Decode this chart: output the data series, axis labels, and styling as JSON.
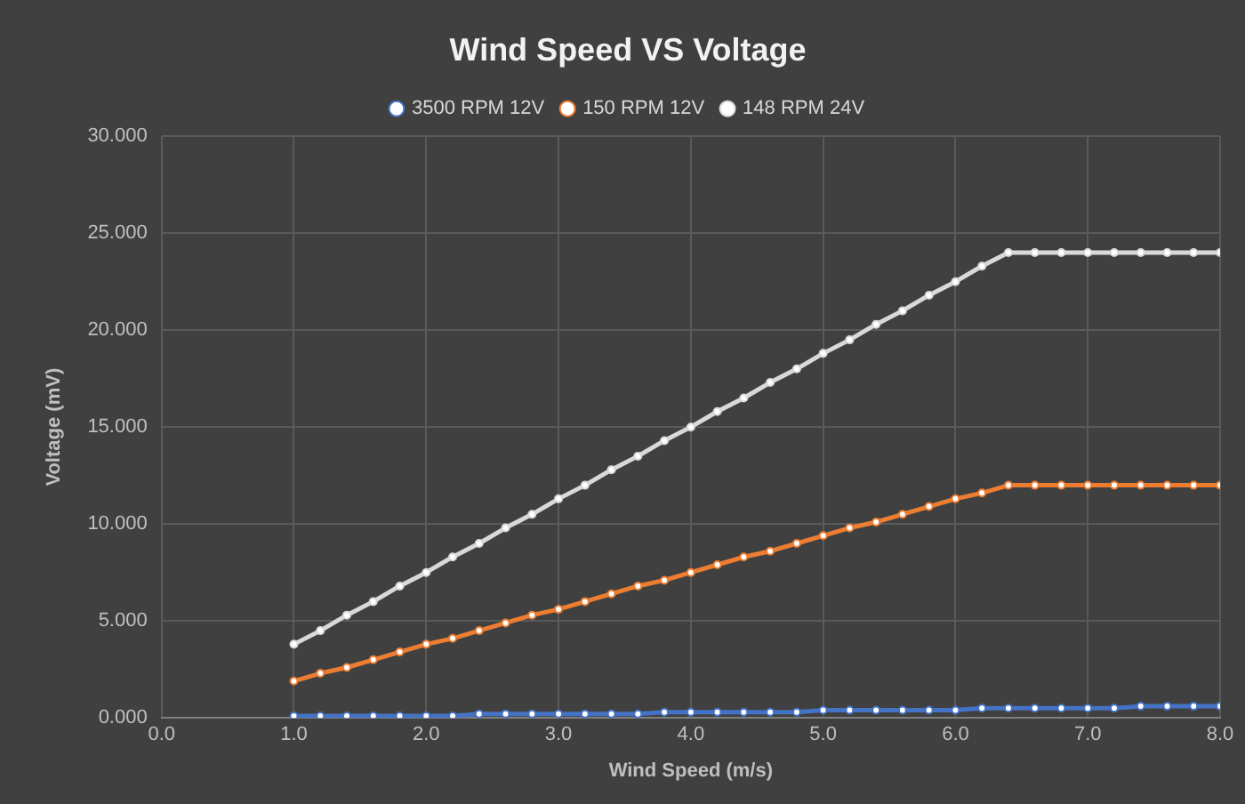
{
  "chart_data": {
    "type": "line",
    "title": "Wind Speed VS Voltage",
    "xlabel": "Wind Speed (m/s)",
    "ylabel": "Voltage (mV)",
    "x": [
      1.0,
      1.2,
      1.4,
      1.6,
      1.8,
      2.0,
      2.2,
      2.4,
      2.6,
      2.8,
      3.0,
      3.2,
      3.4,
      3.6,
      3.8,
      4.0,
      4.2,
      4.4,
      4.6,
      4.8,
      5.0,
      5.2,
      5.4,
      5.6,
      5.8,
      6.0,
      6.2,
      6.4,
      6.6,
      6.8,
      7.0,
      7.2,
      7.4,
      7.6,
      7.8,
      8.0
    ],
    "series": [
      {
        "name": "3500 RPM 12V",
        "color": "#4472c4",
        "values": [
          0.1,
          0.1,
          0.1,
          0.1,
          0.1,
          0.1,
          0.1,
          0.2,
          0.2,
          0.2,
          0.2,
          0.2,
          0.2,
          0.2,
          0.3,
          0.3,
          0.3,
          0.3,
          0.3,
          0.3,
          0.4,
          0.4,
          0.4,
          0.4,
          0.4,
          0.4,
          0.5,
          0.5,
          0.5,
          0.5,
          0.5,
          0.5,
          0.6,
          0.6,
          0.6,
          0.6
        ]
      },
      {
        "name": "150 RPM 12V",
        "color": "#ed7d31",
        "values": [
          1.9,
          2.3,
          2.6,
          3,
          3.4,
          3.8,
          4.1,
          4.5,
          4.9,
          5.3,
          5.6,
          6,
          6.4,
          6.8,
          7.1,
          7.5,
          7.9,
          8.3,
          8.6,
          9,
          9.4,
          9.8,
          10.1,
          10.5,
          10.9,
          11.3,
          11.6,
          12,
          12,
          12,
          12,
          12,
          12,
          12,
          12,
          12
        ]
      },
      {
        "name": "148 RPM 24V",
        "color": "#d9d9d9",
        "values": [
          3.8,
          4.5,
          5.3,
          6,
          6.8,
          7.5,
          8.3,
          9,
          9.8,
          10.5,
          11.3,
          12,
          12.8,
          13.5,
          14.3,
          15,
          15.8,
          16.5,
          17.3,
          18,
          18.8,
          19.5,
          20.3,
          21,
          21.8,
          22.5,
          23.3,
          24,
          24,
          24,
          24,
          24,
          24,
          24,
          24,
          24
        ]
      }
    ],
    "xlim": [
      0,
      8
    ],
    "xticks": [
      {
        "value": 0,
        "label": "0.0"
      },
      {
        "value": 1,
        "label": "1.0"
      },
      {
        "value": 2,
        "label": "2.0"
      },
      {
        "value": 3,
        "label": "3.0"
      },
      {
        "value": 4,
        "label": "4.0"
      },
      {
        "value": 5,
        "label": "5.0"
      },
      {
        "value": 6,
        "label": "6.0"
      },
      {
        "value": 7,
        "label": "7.0"
      },
      {
        "value": 8,
        "label": "8.0"
      }
    ],
    "ylim": [
      0,
      30
    ],
    "yticks": [
      {
        "value": 0,
        "label": "0.000"
      },
      {
        "value": 5,
        "label": "5.000"
      },
      {
        "value": 10,
        "label": "10.000"
      },
      {
        "value": 15,
        "label": "15.000"
      },
      {
        "value": 20,
        "label": "20.000"
      },
      {
        "value": 25,
        "label": "25.000"
      },
      {
        "value": 30,
        "label": "30.000"
      }
    ],
    "grid": true,
    "legend": "top",
    "marker": "circle",
    "line_style": "solid"
  }
}
